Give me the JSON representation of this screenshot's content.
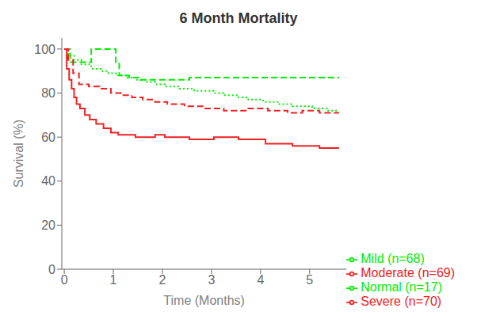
{
  "chart_data": {
    "type": "line",
    "title": "6 Month Mortality",
    "x_label": "Time (Months)",
    "y_label": "Survival (%)",
    "xlim": [
      -0.05,
      5.75
    ],
    "ylim": [
      0,
      105
    ],
    "xticks": [
      0,
      1,
      2,
      3,
      4,
      5
    ],
    "yticks": [
      0,
      20,
      40,
      60,
      80,
      100
    ],
    "grid": false,
    "legend": "lower right",
    "series": [
      {
        "name": "Normal (n=17)",
        "color": "#00ee00",
        "line_style": "dashed",
        "x": [
          0,
          0.12,
          0.12,
          0.55,
          0.55,
          1.05,
          1.05,
          1.12,
          1.12,
          1.32,
          1.32,
          1.55,
          1.55,
          2.55,
          2.55,
          5.6
        ],
        "values": [
          100,
          100,
          94,
          94,
          100,
          100,
          94,
          94,
          88,
          88,
          87,
          87,
          86,
          86,
          87,
          87
        ]
      },
      {
        "name": "Mild (n=68)",
        "color": "#00ee00",
        "line_style": "dotted",
        "x": [
          0,
          0.08,
          0.08,
          0.2,
          0.2,
          0.35,
          0.35,
          0.55,
          0.55,
          0.75,
          0.75,
          0.9,
          0.9,
          1.05,
          1.05,
          1.25,
          1.25,
          1.45,
          1.45,
          1.65,
          1.65,
          1.85,
          1.85,
          2.05,
          2.05,
          2.35,
          2.35,
          2.65,
          2.65,
          3.05,
          3.05,
          3.25,
          3.25,
          3.55,
          3.55,
          3.75,
          3.75,
          4.05,
          4.05,
          4.35,
          4.35,
          4.65,
          4.65,
          5.05,
          5.05,
          5.35,
          5.35,
          5.6
        ],
        "values": [
          100,
          100,
          97,
          97,
          95,
          95,
          93,
          93,
          91,
          91,
          90,
          90,
          89,
          89,
          88,
          88,
          87,
          87,
          86,
          86,
          85,
          85,
          84,
          84,
          83,
          83,
          82,
          82,
          81,
          81,
          80,
          80,
          79,
          79,
          78,
          78,
          77,
          77,
          76,
          76,
          75,
          75,
          74,
          74,
          73,
          73,
          72,
          72
        ]
      },
      {
        "name": "Moderate (n=69)",
        "color": "#ee2222",
        "line_style": "dashed",
        "x": [
          0,
          0.08,
          0.08,
          0.18,
          0.18,
          0.3,
          0.3,
          0.5,
          0.5,
          0.72,
          0.72,
          0.95,
          0.95,
          1.15,
          1.15,
          1.38,
          1.38,
          1.6,
          1.6,
          1.85,
          1.85,
          2.1,
          2.1,
          2.45,
          2.45,
          2.85,
          2.85,
          3.25,
          3.25,
          3.75,
          3.75,
          4.15,
          4.15,
          4.55,
          4.55,
          4.85,
          4.85,
          5.2,
          5.2,
          5.6
        ],
        "values": [
          100,
          100,
          95,
          95,
          89,
          89,
          84,
          84,
          83,
          83,
          82,
          82,
          80,
          80,
          79,
          79,
          78,
          78,
          77,
          77,
          76,
          76,
          75,
          75,
          74,
          74,
          73,
          73,
          72,
          72,
          73,
          73,
          72,
          72,
          71,
          71,
          72,
          72,
          71,
          71
        ]
      },
      {
        "name": "Severe (n=70)",
        "color": "#ee2222",
        "line_style": "solid",
        "x": [
          0,
          0.05,
          0.05,
          0.1,
          0.1,
          0.15,
          0.15,
          0.2,
          0.2,
          0.25,
          0.25,
          0.32,
          0.32,
          0.42,
          0.42,
          0.52,
          0.52,
          0.65,
          0.65,
          0.8,
          0.8,
          0.95,
          0.95,
          1.1,
          1.1,
          1.45,
          1.45,
          1.85,
          1.85,
          2.05,
          2.05,
          2.55,
          2.55,
          3.05,
          3.05,
          3.55,
          3.55,
          4.1,
          4.1,
          4.65,
          4.65,
          5.2,
          5.2,
          5.6
        ],
        "values": [
          100,
          100,
          91,
          91,
          86,
          86,
          82,
          82,
          78,
          78,
          75,
          75,
          73,
          73,
          70,
          70,
          68,
          68,
          66,
          66,
          64,
          64,
          62,
          62,
          61,
          61,
          60,
          60,
          61,
          61,
          60,
          60,
          59,
          59,
          60,
          60,
          59,
          59,
          57,
          57,
          56,
          56,
          55,
          55
        ]
      }
    ]
  }
}
